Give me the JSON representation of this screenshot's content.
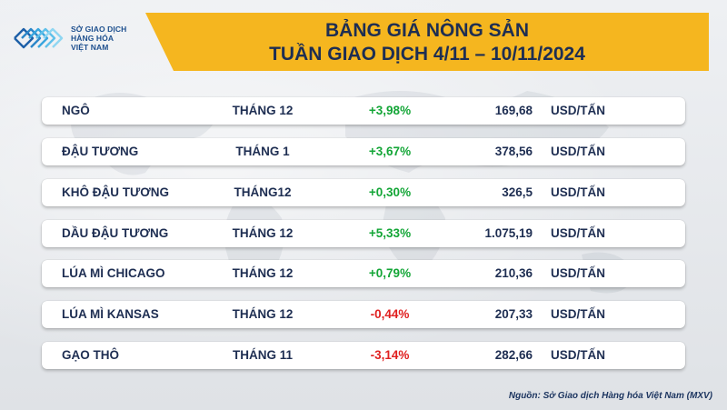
{
  "logo": {
    "line1": "SỞ GIAO DỊCH",
    "line2": "HÀNG HÓA",
    "line3": "VIỆT NAM"
  },
  "header": {
    "title": "BẢNG GIÁ NÔNG SẢN",
    "subtitle": "TUẦN GIAO DỊCH 4/11 – 10/11/2024"
  },
  "rows": [
    {
      "name": "NGÔ",
      "month": "THÁNG 12",
      "change": "+3,98%",
      "price": "169,68",
      "unit": "USD/TẤN",
      "direction": "up"
    },
    {
      "name": "ĐẬU TƯƠNG",
      "month": "THÁNG 1",
      "change": "+3,67%",
      "price": "378,56",
      "unit": "USD/TẤN",
      "direction": "up"
    },
    {
      "name": "KHÔ ĐẬU TƯƠNG",
      "month": "THÁNG12",
      "change": "+0,30%",
      "price": "326,5",
      "unit": "USD/TẤN",
      "direction": "up"
    },
    {
      "name": "DẦU ĐẬU TƯƠNG",
      "month": "THÁNG 12",
      "change": "+5,33%",
      "price": "1.075,19",
      "unit": "USD/TẤN",
      "direction": "up"
    },
    {
      "name": "LÚA MÌ CHICAGO",
      "month": "THÁNG 12",
      "change": "+0,79%",
      "price": "210,36",
      "unit": "USD/TẤN",
      "direction": "up"
    },
    {
      "name": "LÚA MÌ KANSAS",
      "month": "THÁNG 12",
      "change": "-0,44%",
      "price": "207,33",
      "unit": "USD/TẤN",
      "direction": "down"
    },
    {
      "name": "GẠO THÔ",
      "month": "THÁNG 11",
      "change": "-3,14%",
      "price": "282,66",
      "unit": "USD/TẤN",
      "direction": "down"
    }
  ],
  "footer": {
    "source": "Nguồn: Sở Giao dịch Hàng hóa Việt Nam (MXV)"
  },
  "colors": {
    "banner": "#f5b61f",
    "up": "#14a637",
    "down": "#e02020",
    "text": "#1e2e52"
  }
}
